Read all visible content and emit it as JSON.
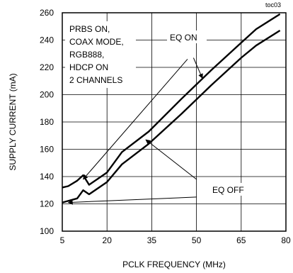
{
  "chart_data": {
    "type": "line",
    "tag": "toc03",
    "xlabel": "PCLK FREQUENCY (MHz)",
    "ylabel": "SUPPLY CURRENT (mA)",
    "xlim": [
      5,
      80
    ],
    "ylim": [
      100,
      260
    ],
    "xticks": [
      5,
      20,
      35,
      50,
      65,
      80
    ],
    "yticks": [
      100,
      120,
      140,
      160,
      180,
      200,
      220,
      240,
      260
    ],
    "grid": true,
    "conditions_lines": [
      "PRBS ON,",
      "COAX MODE,",
      "RGB888,",
      "HDCP ON",
      "2 CHANNELS"
    ],
    "series": [
      {
        "name": "EQ ON",
        "x": [
          5,
          7,
          10,
          12,
          14,
          20,
          25,
          34,
          45,
          55,
          65,
          70,
          78
        ],
        "y": [
          132,
          133,
          137,
          141,
          134,
          143,
          158,
          173,
          197,
          218,
          238,
          248,
          259
        ]
      },
      {
        "name": "EQ OFF",
        "x": [
          5,
          10,
          12,
          14,
          20,
          25,
          34,
          45,
          55,
          65,
          70,
          78
        ],
        "y": [
          121,
          124,
          130,
          127,
          136,
          149,
          164,
          186,
          207,
          227,
          236,
          247
        ]
      }
    ]
  }
}
